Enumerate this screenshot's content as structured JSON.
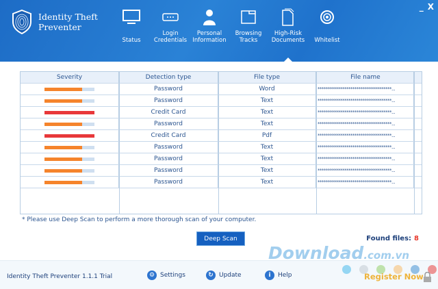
{
  "app": {
    "title_line1": "Identity Theft",
    "title_line2": "Preventer",
    "minimize": "_",
    "close": "X"
  },
  "tabs": [
    {
      "label": "Status",
      "icon": "monitor-icon"
    },
    {
      "label": "Login Credentials",
      "icon": "password-field-icon"
    },
    {
      "label": "Personal Information",
      "icon": "person-icon"
    },
    {
      "label": "Browsing Tracks",
      "icon": "browser-window-icon"
    },
    {
      "label": "High-Risk Documents",
      "icon": "documents-icon",
      "active": true
    },
    {
      "label": "Whitelist",
      "icon": "disc-icon"
    }
  ],
  "table": {
    "headers": [
      "Severity",
      "Detection type",
      "File type",
      "File name"
    ],
    "rows": [
      {
        "severity": 0.75,
        "level": "medium",
        "type": "Password",
        "file_type": "Word",
        "name": "************************************..."
      },
      {
        "severity": 0.75,
        "level": "medium",
        "type": "Password",
        "file_type": "Text",
        "name": "************************************..."
      },
      {
        "severity": 1.0,
        "level": "high",
        "type": "Credit Card",
        "file_type": "Text",
        "name": "************************************..."
      },
      {
        "severity": 0.75,
        "level": "medium",
        "type": "Password",
        "file_type": "Text",
        "name": "************************************..."
      },
      {
        "severity": 1.0,
        "level": "high",
        "type": "Credit Card",
        "file_type": "Pdf",
        "name": "************************************..."
      },
      {
        "severity": 0.75,
        "level": "medium",
        "type": "Password",
        "file_type": "Text",
        "name": "************************************..."
      },
      {
        "severity": 0.75,
        "level": "medium",
        "type": "Password",
        "file_type": "Text",
        "name": "************************************..."
      },
      {
        "severity": 0.75,
        "level": "medium",
        "type": "Password",
        "file_type": "Text",
        "name": "************************************..."
      },
      {
        "severity": 0.75,
        "level": "medium",
        "type": "Password",
        "file_type": "Text",
        "name": "************************************..."
      }
    ]
  },
  "colors": {
    "medium": "#f5842c",
    "high": "#e8383a",
    "accent": "#1560c0"
  },
  "note": "* Please use Deep Scan to perform a more thorough scan of your computer.",
  "deep_scan": "Deep Scan",
  "found_label": "Found files:",
  "found_count": "8",
  "watermark": {
    "main": "Download",
    "suffix": ".com.vn"
  },
  "footer": {
    "version": "Identity Theft Preventer 1.1.1 Trial",
    "settings": "Settings",
    "update": "Update",
    "help": "Help",
    "register": "Register Now"
  }
}
